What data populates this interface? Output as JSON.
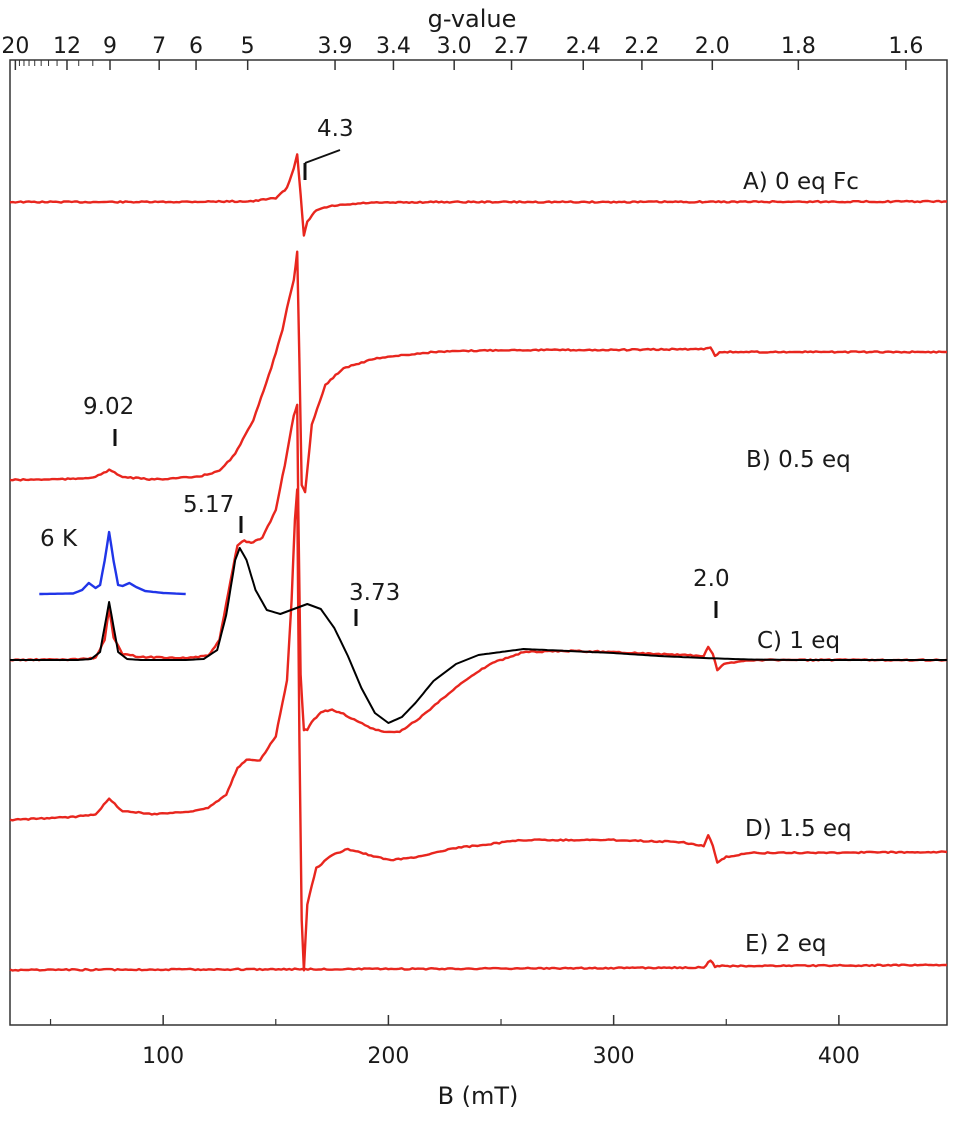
{
  "chart_data": {
    "type": "line",
    "xlabel": "B (mT)",
    "top_axis_label": "g-value",
    "xlim": [
      32,
      448
    ],
    "x_ticks": [
      100,
      200,
      300,
      400
    ],
    "x_tick_labels": [
      "100",
      "200",
      "300",
      "400"
    ],
    "g_ticks": [
      {
        "g": 20,
        "label": "20"
      },
      {
        "g": 12,
        "label": "12"
      },
      {
        "g": 9,
        "label": "9"
      },
      {
        "g": 7,
        "label": "7"
      },
      {
        "g": 6,
        "label": "6"
      },
      {
        "g": 5,
        "label": "5"
      },
      {
        "g": 3.9,
        "label": "3.9"
      },
      {
        "g": 3.4,
        "label": "3.4"
      },
      {
        "g": 3.0,
        "label": "3.0"
      },
      {
        "g": 2.7,
        "label": "2.7"
      },
      {
        "g": 2.4,
        "label": "2.4"
      },
      {
        "g": 2.2,
        "label": "2.2"
      },
      {
        "g": 2.0,
        "label": "2.0"
      },
      {
        "g": 1.8,
        "label": "1.8"
      },
      {
        "g": 1.6,
        "label": "1.6"
      }
    ],
    "series": [
      {
        "name": "A) 0 eq Fc",
        "color": "#e8261e",
        "points": [
          [
            32,
            0
          ],
          [
            100,
            0
          ],
          [
            140,
            0.8
          ],
          [
            150,
            4
          ],
          [
            155,
            14
          ],
          [
            158,
            34
          ],
          [
            159.5,
            48
          ],
          [
            161,
            8
          ],
          [
            162.5,
            -34
          ],
          [
            164,
            -20
          ],
          [
            168,
            -8
          ],
          [
            175,
            -4
          ],
          [
            190,
            -1
          ],
          [
            220,
            0
          ],
          [
            300,
            0
          ],
          [
            448,
            0.5
          ]
        ]
      },
      {
        "name": "B) 0.5 eq",
        "color": "#e8261e",
        "points": [
          [
            32,
            0
          ],
          [
            60,
            1
          ],
          [
            70,
            3
          ],
          [
            76,
            10
          ],
          [
            82,
            3
          ],
          [
            95,
            0.5
          ],
          [
            115,
            3
          ],
          [
            125,
            9
          ],
          [
            132,
            26
          ],
          [
            140,
            60
          ],
          [
            148,
            112
          ],
          [
            153,
            150
          ],
          [
            156,
            182
          ],
          [
            158,
            200
          ],
          [
            159.5,
            228
          ],
          [
            160.5,
            120
          ],
          [
            161.5,
            -5
          ],
          [
            163,
            -12
          ],
          [
            166,
            55
          ],
          [
            172,
            95
          ],
          [
            180,
            112
          ],
          [
            195,
            122
          ],
          [
            220,
            128
          ],
          [
            250,
            130
          ],
          [
            300,
            130
          ],
          [
            340,
            131
          ],
          [
            343,
            133
          ],
          [
            345,
            124
          ],
          [
            347,
            128
          ],
          [
            448,
            128
          ]
        ]
      },
      {
        "name": "C) 1 eq",
        "color": "#e8261e",
        "points": [
          [
            32,
            0
          ],
          [
            60,
            0.5
          ],
          [
            70,
            2
          ],
          [
            74,
            20
          ],
          [
            76,
            52
          ],
          [
            78,
            22
          ],
          [
            82,
            6
          ],
          [
            90,
            3
          ],
          [
            110,
            2
          ],
          [
            120,
            4
          ],
          [
            125,
            20
          ],
          [
            130,
            80
          ],
          [
            133,
            115
          ],
          [
            136,
            119
          ],
          [
            139,
            117
          ],
          [
            144,
            122
          ],
          [
            150,
            150
          ],
          [
            154,
            195
          ],
          [
            156,
            220
          ],
          [
            158,
            245
          ],
          [
            159.5,
            255
          ],
          [
            160,
            150
          ],
          [
            161,
            -15
          ],
          [
            162.5,
            -70
          ],
          [
            164,
            -70
          ],
          [
            166,
            -62
          ],
          [
            170,
            -52
          ],
          [
            175,
            -50
          ],
          [
            180,
            -54
          ],
          [
            186,
            -61
          ],
          [
            192,
            -68
          ],
          [
            198,
            -72
          ],
          [
            205,
            -72
          ],
          [
            215,
            -56
          ],
          [
            230,
            -27
          ],
          [
            245,
            -4
          ],
          [
            260,
            8
          ],
          [
            280,
            9
          ],
          [
            300,
            8
          ],
          [
            320,
            6
          ],
          [
            340,
            4
          ],
          [
            342,
            13
          ],
          [
            344,
            6
          ],
          [
            346,
            -10
          ],
          [
            349,
            -4
          ],
          [
            360,
            0
          ],
          [
            448,
            0
          ]
        ]
      },
      {
        "name": "D) 1.5 eq",
        "color": "#e8261e",
        "points": [
          [
            32,
            0
          ],
          [
            60,
            3
          ],
          [
            70,
            6
          ],
          [
            76,
            21
          ],
          [
            82,
            9
          ],
          [
            95,
            6
          ],
          [
            110,
            8
          ],
          [
            120,
            12
          ],
          [
            128,
            25
          ],
          [
            133,
            52
          ],
          [
            137,
            60
          ],
          [
            143,
            60
          ],
          [
            150,
            84
          ],
          [
            155,
            140
          ],
          [
            157,
            220
          ],
          [
            158.5,
            300
          ],
          [
            159.5,
            330
          ],
          [
            160,
            200
          ],
          [
            160.5,
            80
          ],
          [
            161.5,
            -100
          ],
          [
            162.5,
            -150
          ],
          [
            164,
            -84
          ],
          [
            168,
            -48
          ],
          [
            175,
            -35
          ],
          [
            182,
            -29
          ],
          [
            190,
            -34
          ],
          [
            200,
            -40
          ],
          [
            210,
            -38
          ],
          [
            230,
            -28
          ],
          [
            260,
            -20
          ],
          [
            300,
            -20
          ],
          [
            330,
            -22
          ],
          [
            340,
            -26
          ],
          [
            342,
            -15
          ],
          [
            344,
            -26
          ],
          [
            346,
            -43
          ],
          [
            350,
            -37
          ],
          [
            360,
            -33
          ],
          [
            448,
            -32
          ]
        ]
      },
      {
        "name": "E) 2 eq",
        "color": "#e8261e",
        "points": [
          [
            32,
            0
          ],
          [
            100,
            0.5
          ],
          [
            200,
            1
          ],
          [
            300,
            2
          ],
          [
            340,
            2.5
          ],
          [
            343,
            10
          ],
          [
            345,
            3
          ],
          [
            347,
            4
          ],
          [
            360,
            4
          ],
          [
            448,
            5
          ]
        ]
      },
      {
        "name": "simulation",
        "color": "#000000",
        "points": [
          [
            32,
            0
          ],
          [
            62,
            0
          ],
          [
            68,
            1
          ],
          [
            72,
            8
          ],
          [
            76,
            58
          ],
          [
            80,
            8
          ],
          [
            84,
            1
          ],
          [
            90,
            0
          ],
          [
            110,
            0
          ],
          [
            118,
            1
          ],
          [
            124,
            10
          ],
          [
            128,
            45
          ],
          [
            132,
            100
          ],
          [
            134,
            112
          ],
          [
            137,
            100
          ],
          [
            141,
            70
          ],
          [
            146,
            50
          ],
          [
            152,
            46
          ],
          [
            158,
            51
          ],
          [
            164,
            56
          ],
          [
            170,
            51
          ],
          [
            176,
            32
          ],
          [
            182,
            4
          ],
          [
            188,
            -28
          ],
          [
            194,
            -53
          ],
          [
            200,
            -63
          ],
          [
            206,
            -57
          ],
          [
            212,
            -43
          ],
          [
            220,
            -21
          ],
          [
            230,
            -4
          ],
          [
            240,
            5
          ],
          [
            260,
            11
          ],
          [
            280,
            9
          ],
          [
            300,
            7
          ],
          [
            320,
            4
          ],
          [
            340,
            2
          ],
          [
            360,
            0.5
          ],
          [
            380,
            0
          ],
          [
            448,
            0
          ]
        ]
      },
      {
        "name": "6 K",
        "color": "#2035e8",
        "points": [
          [
            45,
            0
          ],
          [
            60,
            0.5
          ],
          [
            64,
            4
          ],
          [
            67,
            11
          ],
          [
            70,
            6
          ],
          [
            72,
            9
          ],
          [
            74,
            33
          ],
          [
            76,
            62
          ],
          [
            78,
            33
          ],
          [
            80,
            9
          ],
          [
            82,
            8
          ],
          [
            85,
            11
          ],
          [
            88,
            7
          ],
          [
            92,
            3
          ],
          [
            100,
            1
          ],
          [
            110,
            0
          ]
        ]
      }
    ],
    "annotations": [
      {
        "text": "4.3",
        "b": 158
      },
      {
        "text": "9.02",
        "b": 76
      },
      {
        "text": "5.17",
        "b": 133
      },
      {
        "text": "3.73",
        "b": 184
      },
      {
        "text": "2.0",
        "b": 345
      },
      {
        "text": "6 K",
        "b": 60
      }
    ]
  }
}
